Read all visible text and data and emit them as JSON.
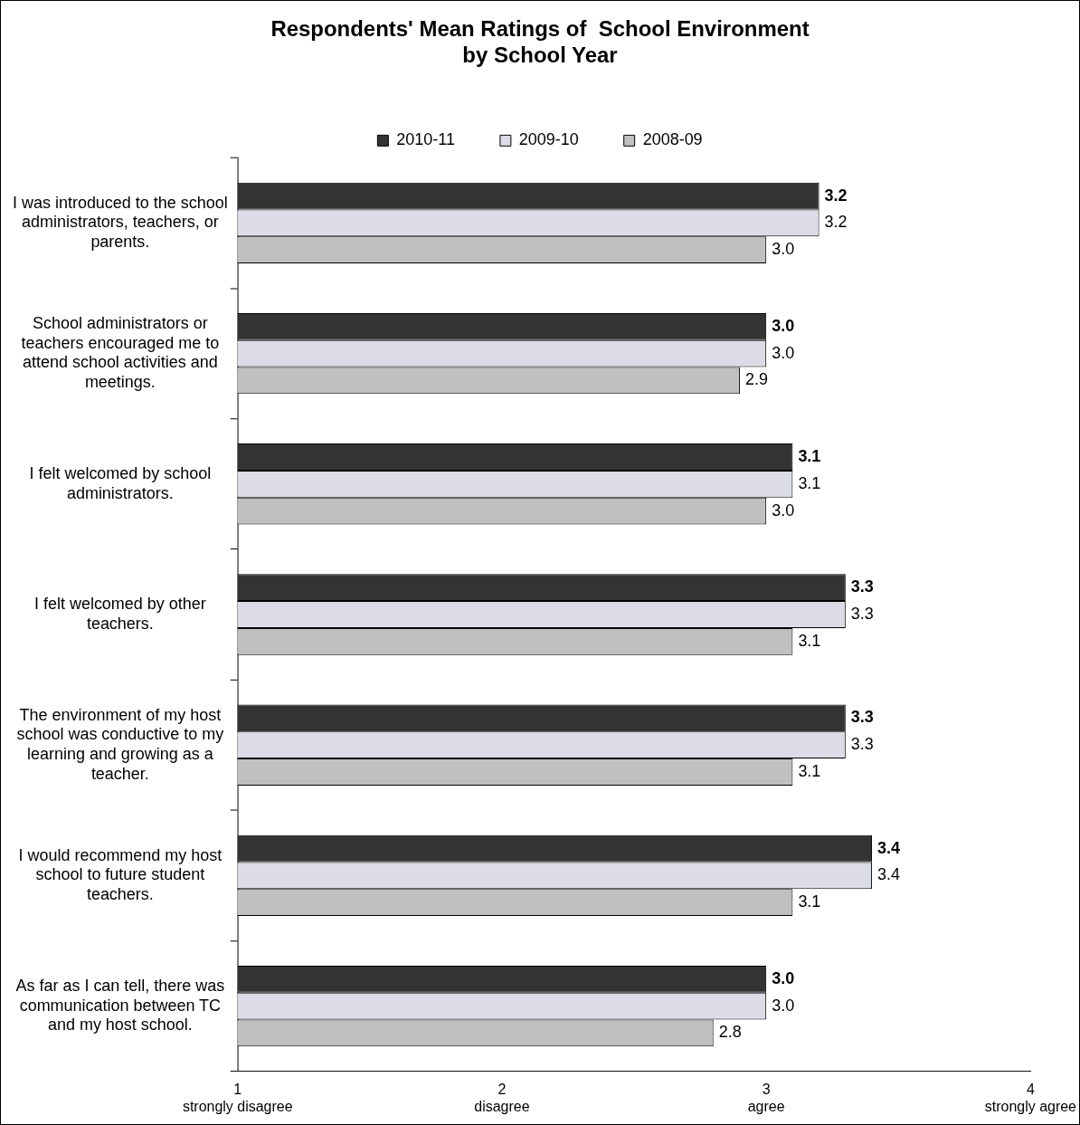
{
  "chart_data": {
    "type": "bar",
    "orientation": "horizontal",
    "title": "Respondents' Mean Ratings of  School Environment\nby School Year",
    "categories": [
      "I was introduced to the school administrators, teachers, or parents.",
      "School administrators or teachers encouraged me to attend school activities and meetings.",
      "I felt welcomed by school administrators.",
      "I felt welcomed by other teachers.",
      "The environment of my host school was conductive to my learning and growing as a teacher.",
      "I would recommend my host school to future student teachers.",
      "As far as I can tell, there was communication between TC and my host school."
    ],
    "series": [
      {
        "name": "2010-11",
        "color": "#333333",
        "values": [
          3.2,
          3.0,
          3.1,
          3.3,
          3.3,
          3.4,
          3.0
        ],
        "value_labels": [
          "3.2",
          "3.0",
          "3.1",
          "3.3",
          "3.3",
          "3.4",
          "3.0"
        ]
      },
      {
        "name": "2009-10",
        "color": "#dcdce6",
        "values": [
          3.2,
          3.0,
          3.1,
          3.3,
          3.3,
          3.4,
          3.0
        ],
        "value_labels": [
          "3.2",
          "3.0",
          "3.1",
          "3.3",
          "3.3",
          "3.4",
          "3.0"
        ]
      },
      {
        "name": "2008-09",
        "color": "#c0c0c0",
        "values": [
          3.0,
          2.9,
          3.0,
          3.1,
          3.1,
          3.1,
          2.8
        ],
        "value_labels": [
          "3.0",
          "2.9",
          "3.0",
          "3.1",
          "3.1",
          "3.1",
          "2.8"
        ]
      }
    ],
    "xlim": [
      1,
      4
    ],
    "xticks": [
      {
        "value": 1,
        "label": "1\nstrongly disagree"
      },
      {
        "value": 2,
        "label": "2\ndisagree"
      },
      {
        "value": 3,
        "label": "3\nagree"
      },
      {
        "value": 4,
        "label": "4\nstrongly agree"
      }
    ],
    "grid": false,
    "legend": "top"
  }
}
